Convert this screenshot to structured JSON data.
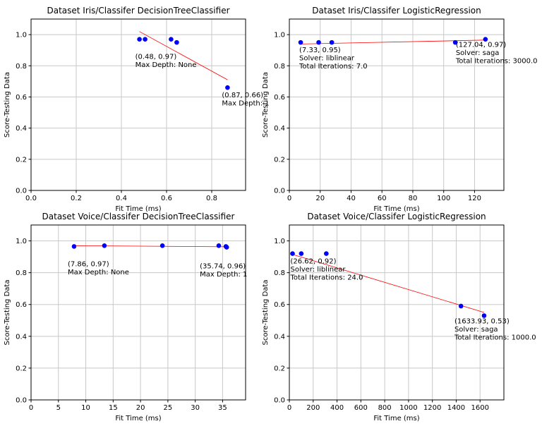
{
  "chart_data": [
    {
      "type": "scatter",
      "title": "Dataset Iris/Classifer DecisionTreeClassifier",
      "xlabel": "Fit Time (ms)",
      "ylabel": "Score-Testing Data",
      "xlim": [
        0,
        0.95
      ],
      "ylim": [
        0,
        1.1
      ],
      "xticks": [
        0.0,
        0.2,
        0.4,
        0.6,
        0.8
      ],
      "xtick_labels": [
        "0.0",
        "0.2",
        "0.4",
        "0.6",
        "0.8"
      ],
      "yticks": [
        0.0,
        0.2,
        0.4,
        0.6,
        0.8,
        1.0
      ],
      "ytick_labels": [
        "0.0",
        "0.2",
        "0.4",
        "0.6",
        "0.8",
        "1.0"
      ],
      "grid": true,
      "points": [
        {
          "x": 0.48,
          "y": 0.97
        },
        {
          "x": 0.505,
          "y": 0.97
        },
        {
          "x": 0.62,
          "y": 0.97
        },
        {
          "x": 0.645,
          "y": 0.95
        },
        {
          "x": 0.87,
          "y": 0.66
        }
      ],
      "trendline": {
        "x": [
          0.48,
          0.87
        ],
        "y": [
          1.02,
          0.71
        ]
      },
      "annotations": [
        {
          "x": 0.48,
          "y": 0.97,
          "lines": [
            "(0.48, 0.97)",
            "Max Depth: None"
          ]
        },
        {
          "x": 0.87,
          "y": 0.66,
          "lines": [
            "(0.87, 0.66)",
            "Max Depth: 1"
          ]
        }
      ],
      "colors": {
        "points": "#0000ff",
        "trendline": "#ff0000"
      }
    },
    {
      "type": "scatter",
      "title": "Dataset Iris/Classifer LogisticRegression",
      "xlabel": "Fit Time (ms)",
      "ylabel": "Score-Testing Data",
      "xlim": [
        0,
        139
      ],
      "ylim": [
        0,
        1.1
      ],
      "xticks": [
        0,
        20,
        40,
        60,
        80,
        100,
        120
      ],
      "xtick_labels": [
        "0",
        "20",
        "40",
        "60",
        "80",
        "100",
        "120"
      ],
      "yticks": [
        0.0,
        0.2,
        0.4,
        0.6,
        0.8,
        1.0
      ],
      "ytick_labels": [
        "0.0",
        "0.2",
        "0.4",
        "0.6",
        "0.8",
        "1.0"
      ],
      "grid": true,
      "points": [
        {
          "x": 7.33,
          "y": 0.95
        },
        {
          "x": 19.0,
          "y": 0.95
        },
        {
          "x": 27.5,
          "y": 0.95
        },
        {
          "x": 107.5,
          "y": 0.95
        },
        {
          "x": 127.04,
          "y": 0.97
        }
      ],
      "trendline": {
        "x": [
          7.33,
          127.04
        ],
        "y": [
          0.94,
          0.965
        ]
      },
      "annotations": [
        {
          "x": 7.33,
          "y": 0.95,
          "lines": [
            "(7.33, 0.95)",
            "Solver: liblinear",
            "Total Iterations: 7.0"
          ]
        },
        {
          "x": 127.04,
          "y": 0.97,
          "lines": [
            "(127.04, 0.97)",
            "Solver: saga",
            "Total Iterations: 3000.0"
          ]
        }
      ],
      "colors": {
        "points": "#0000ff",
        "trendline": "#ff0000"
      }
    },
    {
      "type": "scatter",
      "title": "Dataset Voice/Classifer DecisionTreeClassifier",
      "xlabel": "Fit Time (ms)",
      "ylabel": "Score-Testing Data",
      "xlim": [
        0,
        39.2
      ],
      "ylim": [
        0,
        1.1
      ],
      "xticks": [
        0,
        5,
        10,
        15,
        20,
        25,
        30,
        35
      ],
      "xtick_labels": [
        "0",
        "5",
        "10",
        "15",
        "20",
        "25",
        "30",
        "35"
      ],
      "yticks": [
        0.0,
        0.2,
        0.4,
        0.6,
        0.8,
        1.0
      ],
      "ytick_labels": [
        "0.0",
        "0.2",
        "0.4",
        "0.6",
        "0.8",
        "1.0"
      ],
      "grid": true,
      "points": [
        {
          "x": 7.86,
          "y": 0.965
        },
        {
          "x": 13.4,
          "y": 0.97
        },
        {
          "x": 24.0,
          "y": 0.97
        },
        {
          "x": 34.3,
          "y": 0.97
        },
        {
          "x": 35.6,
          "y": 0.965
        },
        {
          "x": 35.74,
          "y": 0.96
        }
      ],
      "trendline": {
        "x": [
          7.86,
          35.74
        ],
        "y": [
          0.97,
          0.963
        ]
      },
      "annotations": [
        {
          "x": 7.86,
          "y": 0.97,
          "lines": [
            "(7.86, 0.97)",
            "Max Depth: None"
          ]
        },
        {
          "x": 35.74,
          "y": 0.96,
          "lines": [
            "(35.74, 0.96)",
            "Max Depth: 1"
          ]
        }
      ],
      "colors": {
        "points": "#0000ff",
        "trendline": "#ff0000"
      }
    },
    {
      "type": "scatter",
      "title": "Dataset Voice/Classifer LogisticRegression",
      "xlabel": "Fit Time (ms)",
      "ylabel": "Score-Testing Data",
      "xlim": [
        0,
        1800
      ],
      "ylim": [
        0,
        1.1
      ],
      "xticks": [
        0,
        200,
        400,
        600,
        800,
        1000,
        1200,
        1400,
        1600
      ],
      "xtick_labels": [
        "0",
        "200",
        "400",
        "600",
        "800",
        "1000",
        "1200",
        "1400",
        "1600"
      ],
      "yticks": [
        0.0,
        0.2,
        0.4,
        0.6,
        0.8,
        1.0
      ],
      "ytick_labels": [
        "0.0",
        "0.2",
        "0.4",
        "0.6",
        "0.8",
        "1.0"
      ],
      "grid": true,
      "points": [
        {
          "x": 26.62,
          "y": 0.92
        },
        {
          "x": 100.0,
          "y": 0.92
        },
        {
          "x": 310.0,
          "y": 0.92
        },
        {
          "x": 1440.0,
          "y": 0.59
        },
        {
          "x": 1633.93,
          "y": 0.53
        }
      ],
      "trendline": {
        "x": [
          26.62,
          1633.93
        ],
        "y": [
          0.915,
          0.55
        ]
      },
      "annotations": [
        {
          "x": 26.62,
          "y": 0.92,
          "lines": [
            "(26.62, 0.92)",
            "Solver: liblinear",
            "Total Iterations: 24.0"
          ]
        },
        {
          "x": 1633.93,
          "y": 0.53,
          "lines": [
            "(1633.93, 0.53)",
            "Solver: saga",
            "Total Iterations: 1000.0"
          ]
        }
      ],
      "colors": {
        "points": "#0000ff",
        "trendline": "#ff0000"
      }
    }
  ]
}
